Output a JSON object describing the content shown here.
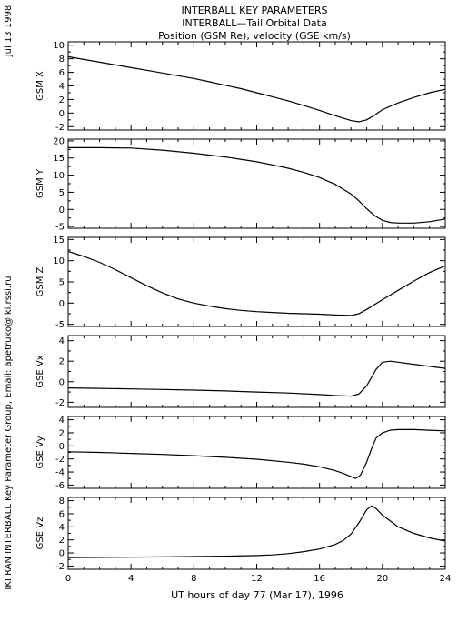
{
  "titles": [
    "INTERBALL KEY PARAMETERS",
    "INTERBALL—Tail Orbital Data",
    "Position (GSM Re), velocity (GSE km/s)"
  ],
  "date_label": "Jul 13 1998",
  "credit": "IKI RAN INTERBALL Key Parameter Group, Email: apetruko@iki.rssi.ru",
  "xlabel": "UT hours of day  77 (Mar 17), 1996",
  "chart_data": [
    {
      "type": "line",
      "ylabel": "GSM X",
      "xlim": [
        0,
        24
      ],
      "ylim": [
        -2.5,
        10.5
      ],
      "xticks": [
        0,
        4,
        8,
        12,
        16,
        20,
        24
      ],
      "yticks": [
        -2,
        0,
        2,
        4,
        6,
        8,
        10
      ],
      "x": [
        0,
        1,
        2,
        3,
        4,
        5,
        6,
        7,
        8,
        9,
        10,
        11,
        12,
        13,
        14,
        15,
        16,
        17,
        18,
        18.5,
        19,
        19.5,
        20,
        21,
        22,
        23,
        24
      ],
      "y": [
        8.3,
        7.9,
        7.5,
        7.1,
        6.7,
        6.3,
        5.9,
        5.5,
        5.1,
        4.6,
        4.1,
        3.6,
        3.0,
        2.4,
        1.8,
        1.1,
        0.4,
        -0.4,
        -1.1,
        -1.3,
        -1.0,
        -0.3,
        0.5,
        1.5,
        2.3,
        3.0,
        3.5
      ]
    },
    {
      "type": "line",
      "ylabel": "GSM Y",
      "xlim": [
        0,
        24
      ],
      "ylim": [
        -5.5,
        20.5
      ],
      "xticks": [
        0,
        4,
        8,
        12,
        16,
        20,
        24
      ],
      "yticks": [
        -5,
        0,
        5,
        10,
        15,
        20
      ],
      "x": [
        0,
        2,
        4,
        6,
        8,
        10,
        12,
        13,
        14,
        15,
        16,
        17,
        18,
        18.5,
        19,
        19.5,
        20,
        20.5,
        21,
        22,
        23,
        24
      ],
      "y": [
        18,
        18,
        17.9,
        17.3,
        16.4,
        15.3,
        13.9,
        13.0,
        12.0,
        10.8,
        9.3,
        7.3,
        4.5,
        2.5,
        0.2,
        -1.8,
        -3.2,
        -3.8,
        -4.0,
        -4.0,
        -3.6,
        -2.8
      ]
    },
    {
      "type": "line",
      "ylabel": "GSM Z",
      "xlim": [
        0,
        24
      ],
      "ylim": [
        -5.5,
        15.5
      ],
      "xticks": [
        0,
        4,
        8,
        12,
        16,
        20,
        24
      ],
      "yticks": [
        -5,
        0,
        5,
        10,
        15
      ],
      "x": [
        0,
        1,
        2,
        3,
        4,
        5,
        6,
        7,
        8,
        9,
        10,
        11,
        12,
        13,
        14,
        15,
        16,
        17,
        18,
        18.5,
        19,
        20,
        21,
        22,
        23,
        24
      ],
      "y": [
        12.2,
        11.0,
        9.6,
        7.9,
        6.0,
        4.1,
        2.4,
        1.0,
        0,
        -0.7,
        -1.3,
        -1.7,
        -2.0,
        -2.2,
        -2.4,
        -2.5,
        -2.6,
        -2.8,
        -2.9,
        -2.5,
        -1.5,
        0.8,
        3.0,
        5.2,
        7.2,
        8.8
      ]
    },
    {
      "type": "line",
      "ylabel": "GSE Vx",
      "xlim": [
        0,
        24
      ],
      "ylim": [
        -2.5,
        4.5
      ],
      "xticks": [
        0,
        4,
        8,
        12,
        16,
        20,
        24
      ],
      "yticks": [
        -2,
        0,
        2,
        4
      ],
      "x": [
        0,
        2,
        4,
        6,
        8,
        10,
        12,
        14,
        16,
        17,
        18,
        18.5,
        19,
        19.3,
        19.6,
        20,
        20.5,
        21,
        22,
        23,
        24
      ],
      "y": [
        -0.6,
        -0.65,
        -0.7,
        -0.75,
        -0.82,
        -0.9,
        -1.0,
        -1.1,
        -1.25,
        -1.35,
        -1.4,
        -1.2,
        -0.4,
        0.4,
        1.2,
        1.9,
        2.0,
        1.9,
        1.7,
        1.5,
        1.3
      ]
    },
    {
      "type": "line",
      "ylabel": "GSE Vy",
      "xlim": [
        0,
        24
      ],
      "ylim": [
        -6.5,
        4.5
      ],
      "xticks": [
        0,
        4,
        8,
        12,
        16,
        20,
        24
      ],
      "yticks": [
        -6,
        -4,
        -2,
        0,
        2,
        4
      ],
      "x": [
        0,
        2,
        4,
        6,
        8,
        10,
        12,
        14,
        15,
        16,
        17,
        17.5,
        18,
        18.3,
        18.6,
        19,
        19.3,
        19.6,
        20,
        20.5,
        21,
        22,
        23,
        24
      ],
      "y": [
        -0.9,
        -1.0,
        -1.15,
        -1.3,
        -1.5,
        -1.75,
        -2.05,
        -2.5,
        -2.8,
        -3.2,
        -3.8,
        -4.2,
        -4.7,
        -5.0,
        -4.5,
        -2.5,
        -0.5,
        1.2,
        2.0,
        2.4,
        2.5,
        2.5,
        2.4,
        2.3
      ]
    },
    {
      "type": "line",
      "ylabel": "GSE Vz",
      "xlim": [
        0,
        24
      ],
      "ylim": [
        -2.5,
        8.5
      ],
      "xticks": [
        0,
        4,
        8,
        12,
        16,
        20,
        24
      ],
      "yticks": [
        -2,
        0,
        2,
        4,
        6,
        8
      ],
      "x": [
        0,
        2,
        4,
        6,
        8,
        10,
        12,
        13,
        14,
        15,
        16,
        17,
        17.5,
        18,
        18.5,
        19,
        19.3,
        19.6,
        20,
        20.5,
        21,
        22,
        23,
        24
      ],
      "y": [
        -0.7,
        -0.68,
        -0.65,
        -0.6,
        -0.55,
        -0.5,
        -0.4,
        -0.3,
        -0.1,
        0.2,
        0.6,
        1.3,
        1.9,
        2.9,
        4.6,
        6.6,
        7.2,
        6.8,
        5.8,
        4.9,
        4.0,
        3.0,
        2.3,
        1.8
      ]
    }
  ]
}
